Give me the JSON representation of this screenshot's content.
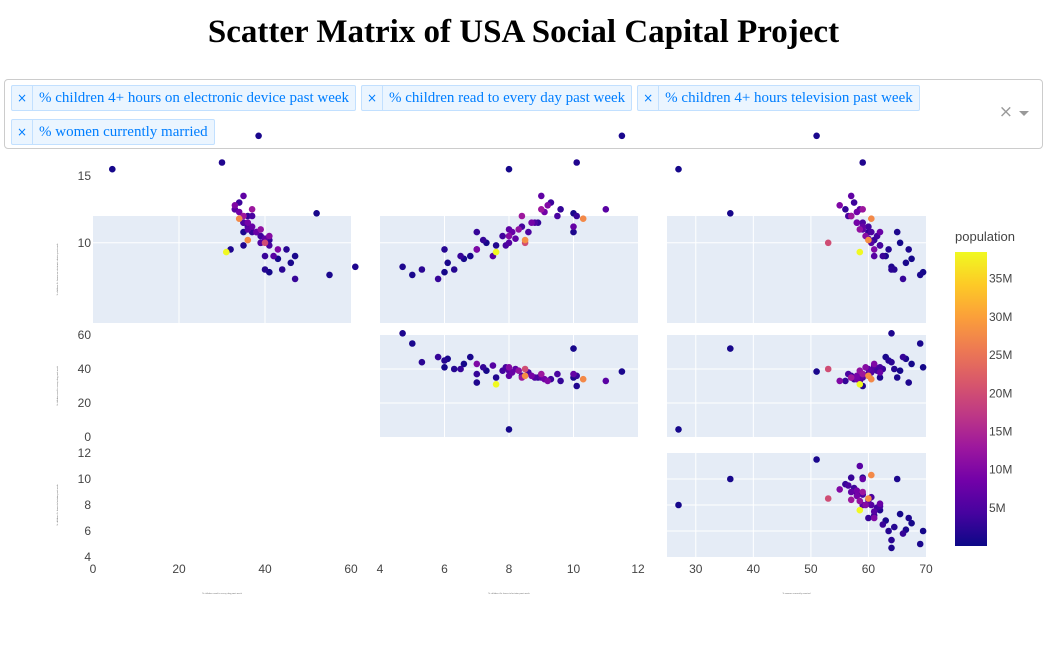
{
  "page": {
    "title": "Scatter Matrix of USA Social Capital Project"
  },
  "dropdown": {
    "selected": [
      "% children 4+ hours on electronic device past week",
      "% children read to every day past week",
      "% children 4+ hours television past week",
      "% women currently married"
    ],
    "clear_glyph": "×",
    "remove_glyph": "×"
  },
  "chart_data": {
    "type": "scatter",
    "title": "Scatter Matrix of USA Social Capital Project",
    "dimensions": [
      "% children 4+ hours on electronic device past week",
      "% children read to every day past week",
      "% children 4+ hours television past week",
      "% women currently married"
    ],
    "ranges": [
      [
        4,
        12
      ],
      [
        0,
        60
      ],
      [
        4,
        12
      ],
      [
        25,
        70
      ]
    ],
    "color_variable": "population",
    "colorbar": {
      "title": "population",
      "ticks": [
        "5M",
        "10M",
        "15M",
        "20M",
        "25M",
        "30M",
        "35M"
      ],
      "tick_values": [
        5,
        10,
        15,
        20,
        25,
        30,
        35
      ],
      "max": 38.5
    },
    "colorscale": [
      "#0d0887",
      "#46039f",
      "#7201a8",
      "#9c179e",
      "#bd3786",
      "#d8576b",
      "#ed7953",
      "#fb9f3a",
      "#fdca26",
      "#f0f921"
    ],
    "panels": [
      {
        "x": "% children read to every day past week",
        "y": "% children 4+ hours on electronic device past week"
      },
      {
        "x": "% children 4+ hours television past week",
        "y": "% children 4+ hours on electronic device past week"
      },
      {
        "x": "% women currently married",
        "y": "% children 4+ hours on electronic device past week"
      },
      {
        "x": "% children 4+ hours television past week",
        "y": "% children read to every day past week"
      },
      {
        "x": "% women currently married",
        "y": "% children read to every day past week"
      },
      {
        "x": "% women currently married",
        "y": "% children 4+ hours television past week"
      }
    ],
    "grid": true,
    "legend": "right",
    "states": [
      {
        "e": 15.5,
        "r": 4.5,
        "t": 8.0,
        "m": 27.0,
        "pop": 0.7
      },
      {
        "e": 12.2,
        "r": 52.0,
        "t": 10.0,
        "m": 36.0,
        "pop": 0.8
      },
      {
        "e": 18.0,
        "r": 38.5,
        "t": 11.5,
        "m": 51.0,
        "pop": 1.0
      },
      {
        "e": 16.0,
        "r": 30.0,
        "t": 10.1,
        "m": 59.0,
        "pop": 1.5
      },
      {
        "e": 9.3,
        "r": 31.0,
        "t": 7.6,
        "m": 58.5,
        "pop": 38.5
      },
      {
        "e": 10.2,
        "r": 36.0,
        "t": 8.5,
        "m": 60.0,
        "pop": 28.0
      },
      {
        "e": 11.8,
        "r": 34.0,
        "t": 10.3,
        "m": 60.5,
        "pop": 27.5
      },
      {
        "e": 10.0,
        "r": 40.0,
        "t": 8.5,
        "m": 53.0,
        "pop": 20.0
      },
      {
        "e": 12.5,
        "r": 37.0,
        "t": 9.0,
        "m": 59.0,
        "pop": 12.8
      },
      {
        "e": 12.0,
        "r": 35.0,
        "t": 8.4,
        "m": 57.0,
        "pop": 13.0
      },
      {
        "e": 11.0,
        "r": 39.0,
        "t": 8.3,
        "m": 58.5,
        "pop": 11.7
      },
      {
        "e": 10.5,
        "r": 41.0,
        "t": 8.0,
        "m": 59.5,
        "pop": 10.5
      },
      {
        "e": 12.8,
        "r": 33.0,
        "t": 9.2,
        "m": 55.0,
        "pop": 10.0
      },
      {
        "e": 9.5,
        "r": 43.0,
        "t": 7.0,
        "m": 61.0,
        "pop": 9.9
      },
      {
        "e": 11.5,
        "r": 36.0,
        "t": 8.7,
        "m": 58.0,
        "pop": 8.9
      },
      {
        "e": 12.3,
        "r": 34.0,
        "t": 9.1,
        "m": 58.0,
        "pop": 8.6
      },
      {
        "e": 10.8,
        "r": 38.0,
        "t": 8.1,
        "m": 62.0,
        "pop": 7.6
      },
      {
        "e": 11.2,
        "r": 37.0,
        "t": 10.0,
        "m": 59.0,
        "pop": 7.3
      },
      {
        "e": 13.5,
        "r": 35.0,
        "t": 9.0,
        "m": 57.0,
        "pop": 6.8
      },
      {
        "e": 10.3,
        "r": 40.0,
        "t": 8.2,
        "m": 60.0,
        "pop": 6.7
      },
      {
        "e": 11.0,
        "r": 36.0,
        "t": 8.0,
        "m": 59.0,
        "pop": 6.6
      },
      {
        "e": 12.5,
        "r": 33.0,
        "t": 11.0,
        "m": 58.5,
        "pop": 6.1
      },
      {
        "e": 9.0,
        "r": 42.0,
        "t": 7.5,
        "m": 61.0,
        "pop": 5.8
      },
      {
        "e": 10.0,
        "r": 39.0,
        "t": 8.0,
        "m": 60.5,
        "pop": 5.6
      },
      {
        "e": 11.5,
        "r": 35.0,
        "t": 8.8,
        "m": 59.0,
        "pop": 5.1
      },
      {
        "e": 10.8,
        "r": 38.0,
        "t": 8.6,
        "m": 60.5,
        "pop": 4.8
      },
      {
        "e": 12.0,
        "r": 37.0,
        "t": 9.5,
        "m": 56.5,
        "pop": 4.6
      },
      {
        "e": 9.8,
        "r": 41.0,
        "t": 7.9,
        "m": 62.0,
        "pop": 4.4
      },
      {
        "e": 11.2,
        "r": 36.0,
        "t": 8.4,
        "m": 60.0,
        "pop": 4.2
      },
      {
        "e": 10.5,
        "r": 39.0,
        "t": 7.8,
        "m": 61.5,
        "pop": 3.9
      },
      {
        "e": 13.0,
        "r": 34.0,
        "t": 9.3,
        "m": 57.5,
        "pop": 3.6
      },
      {
        "e": 9.0,
        "r": 40.0,
        "t": 6.5,
        "m": 62.5,
        "pop": 3.2
      },
      {
        "e": 12.0,
        "r": 36.0,
        "t": 10.1,
        "m": 57.0,
        "pop": 3.1
      },
      {
        "e": 10.8,
        "r": 37.0,
        "t": 7.0,
        "m": 60.0,
        "pop": 3.0
      },
      {
        "e": 11.5,
        "r": 35.0,
        "t": 8.9,
        "m": 58.0,
        "pop": 3.0
      },
      {
        "e": 10.2,
        "r": 41.0,
        "t": 7.2,
        "m": 61.0,
        "pop": 2.9
      },
      {
        "e": 12.5,
        "r": 33.0,
        "t": 9.6,
        "m": 56.0,
        "pop": 2.9
      },
      {
        "e": 8.0,
        "r": 44.0,
        "t": 5.3,
        "m": 64.0,
        "pop": 2.2
      },
      {
        "e": 9.5,
        "r": 45.0,
        "t": 6.0,
        "m": 63.5,
        "pop": 1.9
      },
      {
        "e": 7.3,
        "r": 47.0,
        "t": 5.8,
        "m": 66.0,
        "pop": 3.1
      },
      {
        "e": 8.0,
        "r": 40.0,
        "t": 6.3,
        "m": 64.5,
        "pop": 1.8
      },
      {
        "e": 9.8,
        "r": 35.0,
        "t": 7.6,
        "m": 62.0,
        "pop": 1.4
      },
      {
        "e": 8.2,
        "r": 61.0,
        "t": 4.7,
        "m": 64.0,
        "pop": 1.3
      },
      {
        "e": 9.5,
        "r": 32.0,
        "t": 7.0,
        "m": 67.0,
        "pop": 1.3
      },
      {
        "e": 10.8,
        "r": 35.0,
        "t": 10.0,
        "m": 65.0,
        "pop": 1.1
      },
      {
        "e": 7.6,
        "r": 55.0,
        "t": 5.0,
        "m": 69.0,
        "pop": 1.0
      },
      {
        "e": 8.5,
        "r": 46.0,
        "t": 6.1,
        "m": 66.5,
        "pop": 0.9
      },
      {
        "e": 9.0,
        "r": 47.0,
        "t": 6.8,
        "m": 63.0,
        "pop": 0.9
      },
      {
        "e": 7.8,
        "r": 41.0,
        "t": 6.0,
        "m": 69.5,
        "pop": 0.6
      },
      {
        "e": 10.0,
        "r": 39.0,
        "t": 7.3,
        "m": 65.5,
        "pop": 0.6
      },
      {
        "e": 8.8,
        "r": 43.0,
        "t": 6.6,
        "m": 67.5,
        "pop": 0.6
      }
    ]
  }
}
